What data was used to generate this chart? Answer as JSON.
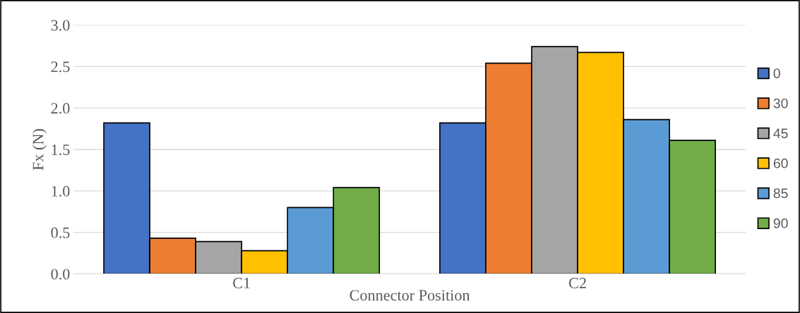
{
  "chart_data": {
    "type": "bar",
    "xlabel": "Connector Position",
    "ylabel": "Fx (N)",
    "categories": [
      "C1",
      "C2"
    ],
    "series": [
      {
        "name": "0",
        "color": "#4472c4",
        "values": [
          1.82,
          1.82
        ]
      },
      {
        "name": "30",
        "color": "#ed7d31",
        "values": [
          0.43,
          2.54
        ]
      },
      {
        "name": "45",
        "color": "#a5a5a5",
        "values": [
          0.39,
          2.74
        ]
      },
      {
        "name": "60",
        "color": "#ffc000",
        "values": [
          0.28,
          2.67
        ]
      },
      {
        "name": "85",
        "color": "#5b9bd5",
        "values": [
          0.8,
          1.86
        ]
      },
      {
        "name": "90",
        "color": "#70ad47",
        "values": [
          1.04,
          1.61
        ]
      }
    ],
    "ylim": [
      0,
      3
    ],
    "yticks": [
      {
        "value": 0,
        "label": "0.0"
      },
      {
        "value": 0.5,
        "label": "0.5"
      },
      {
        "value": 1,
        "label": "1.0"
      },
      {
        "value": 1.5,
        "label": "1.5"
      },
      {
        "value": 2,
        "label": "2.0"
      },
      {
        "value": 2.5,
        "label": "2.5"
      },
      {
        "value": 3,
        "label": "3.0"
      }
    ],
    "grid": "y",
    "legend": "right"
  }
}
